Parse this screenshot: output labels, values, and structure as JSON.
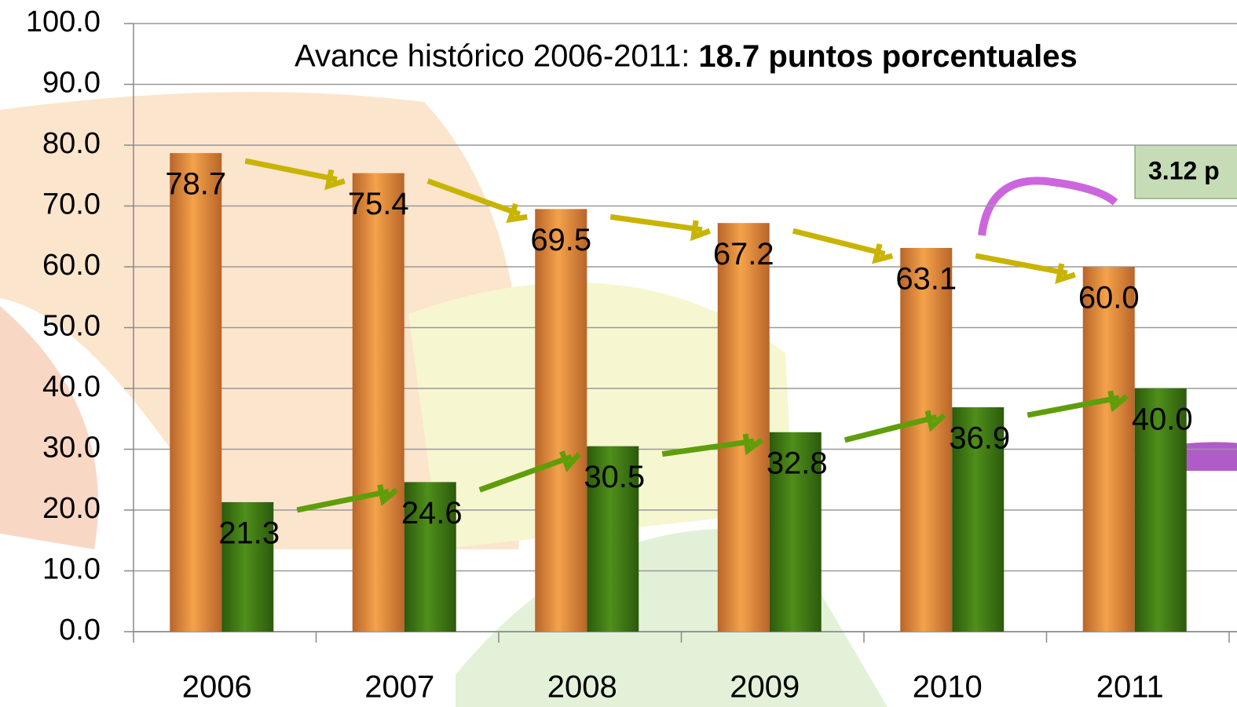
{
  "chart_data": {
    "type": "bar",
    "title": "Avance histórico 2006-2011: ",
    "title_emphasis": "18.7 puntos porcentuales",
    "annotation": "3.12 p",
    "categories": [
      "2006",
      "2007",
      "2008",
      "2009",
      "2010",
      "2011"
    ],
    "series": [
      {
        "color": "#e8913a",
        "values": [
          78.7,
          75.4,
          69.5,
          67.2,
          63.1,
          60.0
        ],
        "value_labels": [
          "78.7",
          "75.4",
          "69.5",
          "67.2",
          "63.1",
          "60.0"
        ]
      },
      {
        "color": "#3f7a12",
        "values": [
          21.3,
          24.6,
          30.5,
          32.8,
          36.9,
          40.0
        ],
        "value_labels": [
          "21.3",
          "24.6",
          "30.5",
          "32.8",
          "36.9",
          "40.0"
        ]
      }
    ],
    "ylim": [
      0,
      100
    ],
    "yticks": [
      {
        "value": 0,
        "label": "0.0"
      },
      {
        "value": 10,
        "label": "10.0"
      },
      {
        "value": 20,
        "label": "20.0"
      },
      {
        "value": 30,
        "label": "30.0"
      },
      {
        "value": 40,
        "label": "40.0"
      },
      {
        "value": 50,
        "label": "50.0"
      },
      {
        "value": 60,
        "label": "60.0"
      },
      {
        "value": 70,
        "label": "70.0"
      },
      {
        "value": 80,
        "label": "80.0"
      },
      {
        "value": 90,
        "label": "90.0"
      },
      {
        "value": 100,
        "label": "100.0"
      }
    ],
    "grid": true
  }
}
